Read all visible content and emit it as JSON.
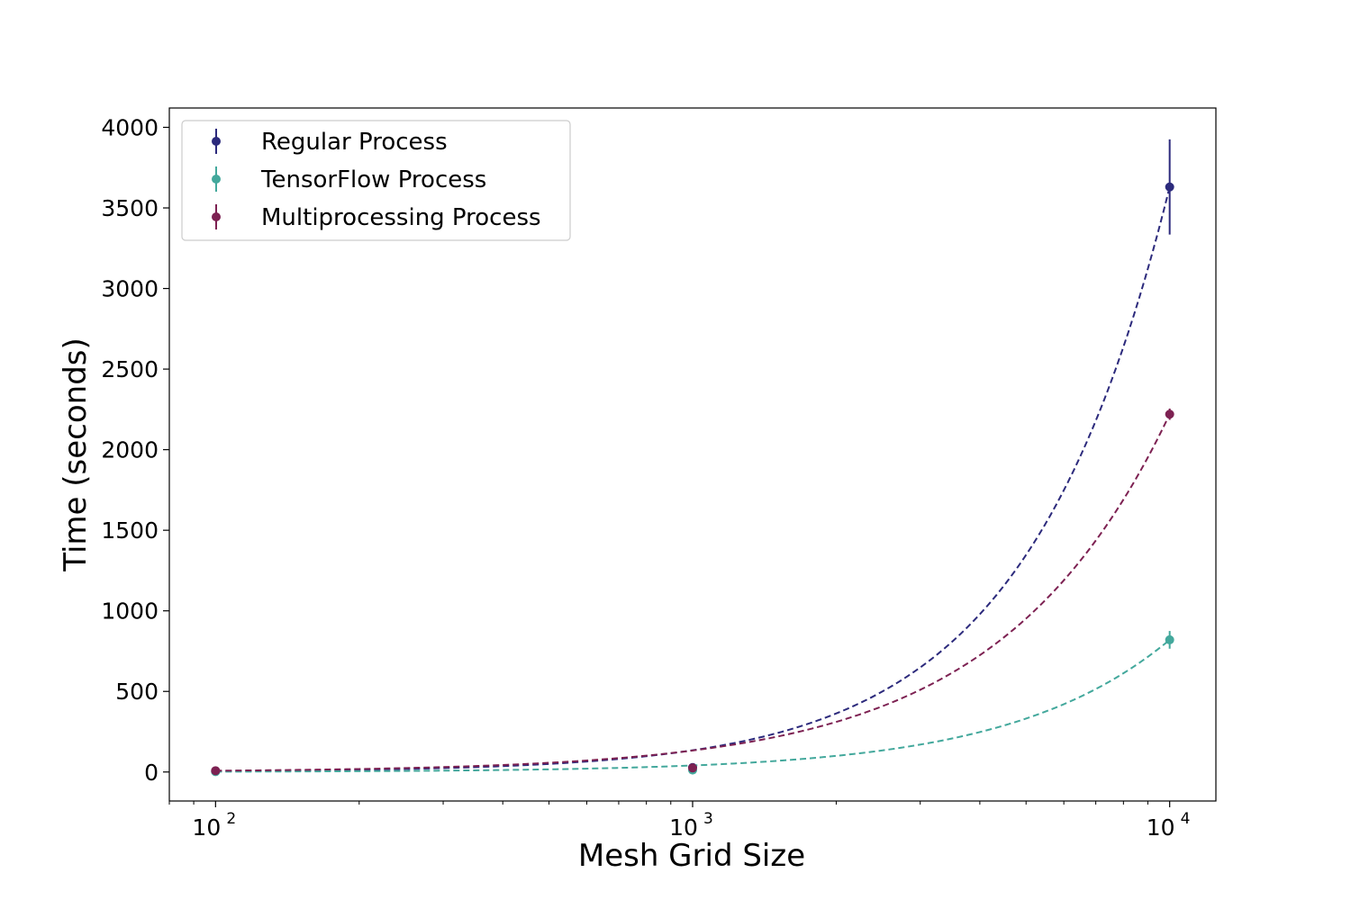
{
  "chart_data": {
    "type": "line",
    "title": "",
    "xlabel": "Mesh Grid Size",
    "ylabel": "Time (seconds)",
    "xscale": "log",
    "x": [
      100,
      1000,
      10000
    ],
    "xlim": [
      80,
      12500
    ],
    "ylim": [
      -180,
      4120
    ],
    "xticks": [
      {
        "value": 100,
        "base": "10",
        "exp": "2"
      },
      {
        "value": 1000,
        "base": "10",
        "exp": "3"
      },
      {
        "value": 10000,
        "base": "10",
        "exp": "4"
      }
    ],
    "yticks": [
      0,
      500,
      1000,
      1500,
      2000,
      2500,
      3000,
      3500,
      4000
    ],
    "grid": false,
    "legend_position": "top-left",
    "fit_style": "dashed power-law fit through points",
    "series": [
      {
        "name": "Regular Process",
        "color": "#2c2a7c",
        "values": [
          5,
          28,
          3630
        ],
        "errors": [
          3,
          8,
          295
        ]
      },
      {
        "name": "TensorFlow Process",
        "color": "#43a89c",
        "values": [
          2,
          12,
          820
        ],
        "errors": [
          2,
          4,
          55
        ]
      },
      {
        "name": "Multiprocessing Process",
        "color": "#7d2152",
        "values": [
          8,
          25,
          2220
        ],
        "errors": [
          3,
          6,
          35
        ]
      }
    ]
  }
}
